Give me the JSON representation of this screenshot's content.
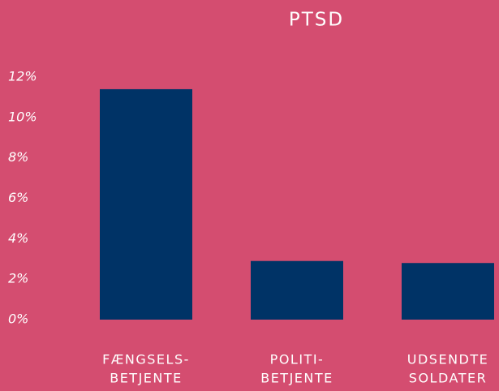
{
  "chart_data": {
    "type": "bar",
    "title": "PTSD",
    "categories": [
      [
        "FÆNGSELS-",
        "BETJENTE"
      ],
      [
        "POLITI-",
        "BETJENTE"
      ],
      [
        "UDSENDTE",
        "SOLDATER"
      ]
    ],
    "values": [
      11.4,
      2.9,
      2.8
    ],
    "color": "#003366",
    "ylim": [
      0,
      12
    ],
    "yticks": [
      {
        "value": 0,
        "label": "0%"
      },
      {
        "value": 2,
        "label": "2%"
      },
      {
        "value": 4,
        "label": "4%"
      },
      {
        "value": 6,
        "label": "6%"
      },
      {
        "value": 8,
        "label": "8%"
      },
      {
        "value": 10,
        "label": "10%"
      },
      {
        "value": 12,
        "label": "12%"
      }
    ],
    "grid": false
  }
}
